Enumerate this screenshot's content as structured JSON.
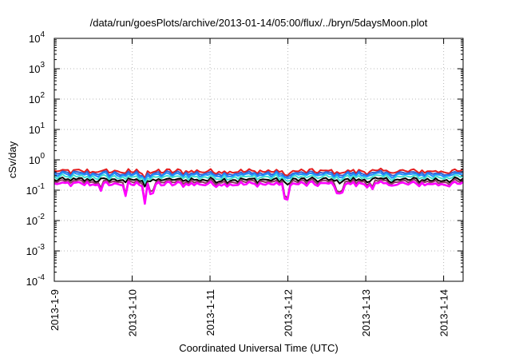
{
  "chart_data": {
    "type": "line",
    "title": "/data/run/goesPlots/archive/2013-01-14/05:00/flux/../bryn/5daysMoon.plot",
    "xlabel": "Coordinated Universal Time (UTC)",
    "ylabel": "cSv/day",
    "yscale": "log",
    "ylim": [
      0.0001,
      10000
    ],
    "xlim": [
      "2013-01-09 00:00",
      "2013-01-14 06:00"
    ],
    "grid": true,
    "legend": "none",
    "y_ticks": [
      {
        "value": 0.0001,
        "base": "10",
        "exp": "-4"
      },
      {
        "value": 0.001,
        "base": "10",
        "exp": "-3"
      },
      {
        "value": 0.01,
        "base": "10",
        "exp": "-2"
      },
      {
        "value": 0.1,
        "base": "10",
        "exp": "-1"
      },
      {
        "value": 1,
        "base": "10",
        "exp": "0"
      },
      {
        "value": 10,
        "base": "10",
        "exp": "1"
      },
      {
        "value": 100,
        "base": "10",
        "exp": "2"
      },
      {
        "value": 1000,
        "base": "10",
        "exp": "3"
      },
      {
        "value": 10000,
        "base": "10",
        "exp": "4"
      }
    ],
    "x_ticks": [
      "2013-1-9",
      "2013-1-10",
      "2013-1-11",
      "2013-1-12",
      "2013-1-13",
      "2013-1-14"
    ],
    "x_tick_dates": [
      "2013-01-09",
      "2013-01-10",
      "2013-01-11",
      "2013-01-12",
      "2013-01-13",
      "2013-01-14"
    ],
    "series": [
      {
        "color": "#e41a1c",
        "level": 0.42
      },
      {
        "color": "#3a5fcd",
        "level": 0.36
      },
      {
        "color": "#1e90ff",
        "level": 0.32
      },
      {
        "color": "#40e0d0",
        "level": 0.27
      },
      {
        "color": "#000000",
        "level": 0.22
      },
      {
        "color": "#8b3a62",
        "level": 0.19
      },
      {
        "color": "#ff00ff",
        "level": 0.16
      }
    ],
    "dips": [
      {
        "x": "2013-01-09 14:30",
        "depth": 0.55
      },
      {
        "x": "2013-01-09 22:00",
        "depth": 0.35
      },
      {
        "x": "2013-01-10 04:00",
        "depth": 0.25
      },
      {
        "x": "2013-01-10 06:00",
        "depth": 0.45
      },
      {
        "x": "2013-01-11 23:30",
        "depth": 0.3
      },
      {
        "x": "2013-01-12 15:00",
        "depth": 0.45
      },
      {
        "x": "2013-01-12 16:30",
        "depth": 0.55
      },
      {
        "x": "2013-01-13 02:00",
        "depth": 0.6
      }
    ]
  }
}
